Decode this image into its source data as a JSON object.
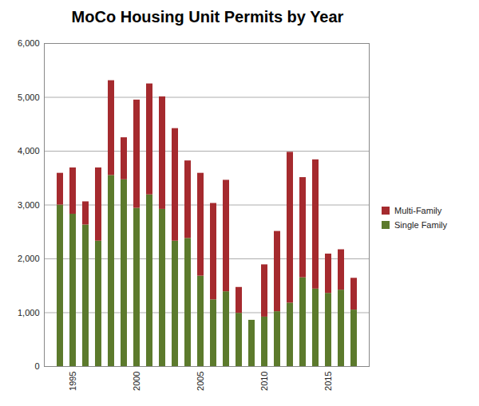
{
  "chart_data": {
    "type": "bar",
    "title": "MoCo Housing Unit Permits by Year",
    "x": [
      1994,
      1995,
      1996,
      1997,
      1998,
      1999,
      2000,
      2001,
      2002,
      2003,
      2004,
      2005,
      2006,
      2007,
      2008,
      2009,
      2010,
      2011,
      2012,
      2013,
      2014,
      2015,
      2016,
      2017
    ],
    "xticks": [
      1995,
      2000,
      2005,
      2010,
      2015
    ],
    "series": [
      {
        "name": "Single Family",
        "color": "#5c7a2c",
        "values": [
          3000,
          2830,
          2630,
          2330,
          3550,
          3470,
          2940,
          3190,
          2920,
          2330,
          2380,
          1680,
          1240,
          1390,
          990,
          860,
          920,
          1020,
          1180,
          1650,
          1440,
          1360,
          1420,
          1050
        ]
      },
      {
        "name": "Multi-Family",
        "color": "#a52a2e",
        "values": [
          590,
          860,
          430,
          1360,
          1760,
          780,
          2010,
          2060,
          2090,
          2090,
          1440,
          1910,
          1790,
          2070,
          480,
          0,
          970,
          1490,
          2800,
          1860,
          2400,
          730,
          750,
          590
        ]
      }
    ],
    "ylim": [
      0,
      6000
    ],
    "yticks": [
      0,
      {
        "value": 1000,
        "label": "1,000"
      },
      {
        "value": 2000,
        "label": "2,000"
      },
      {
        "value": 3000,
        "label": "3,000"
      },
      {
        "value": 4000,
        "label": "4,000"
      },
      {
        "value": 5000,
        "label": "5,000"
      },
      {
        "value": 6000,
        "label": "6,000"
      }
    ],
    "stacked": true,
    "grid": true,
    "legend": "right"
  }
}
